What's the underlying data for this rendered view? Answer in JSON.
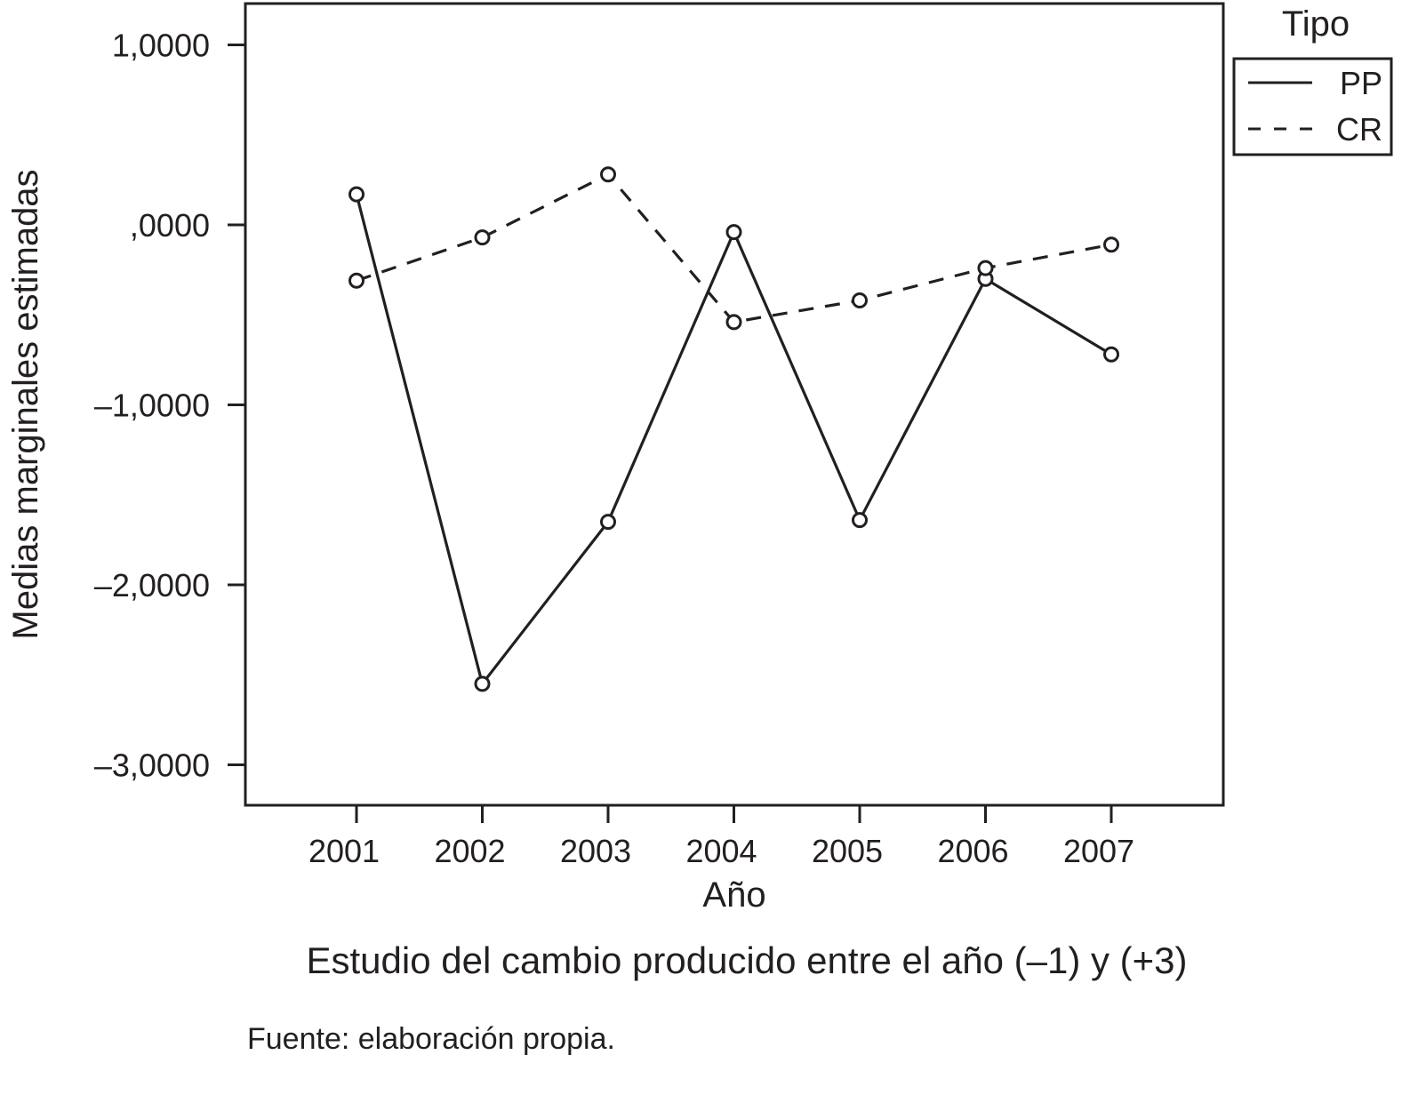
{
  "chart_data": {
    "type": "line",
    "categories": [
      "2001",
      "2002",
      "2003",
      "2004",
      "2005",
      "2006",
      "2007"
    ],
    "series": [
      {
        "name": "PP",
        "line_style": "solid",
        "values": [
          0.17,
          -2.55,
          -1.65,
          -0.04,
          -1.64,
          -0.3,
          -0.72
        ]
      },
      {
        "name": "CR",
        "line_style": "dashed",
        "values": [
          -0.31,
          -0.07,
          0.28,
          -0.54,
          -0.42,
          -0.24,
          -0.11
        ]
      }
    ],
    "xlabel": "Año",
    "ylabel": "Medias marginales estimadas",
    "yticks": [
      1,
      0,
      -1,
      -2,
      -3
    ],
    "ytick_labels": [
      "1,0000",
      ",0000",
      "–1,0000",
      "–2,0000",
      "–3,0000"
    ],
    "ylim": [
      -3.2,
      1.23
    ],
    "legend": {
      "title": "Tipo",
      "placement": "outside-top-right"
    },
    "grid": false,
    "marker": "open-circle",
    "colors": {
      "line": "#231f20",
      "background": "#ffffff"
    }
  },
  "subtitle": "Estudio del cambio producido entre el año (–1) y (+3)",
  "source_note": "Fuente: elaboración propia."
}
